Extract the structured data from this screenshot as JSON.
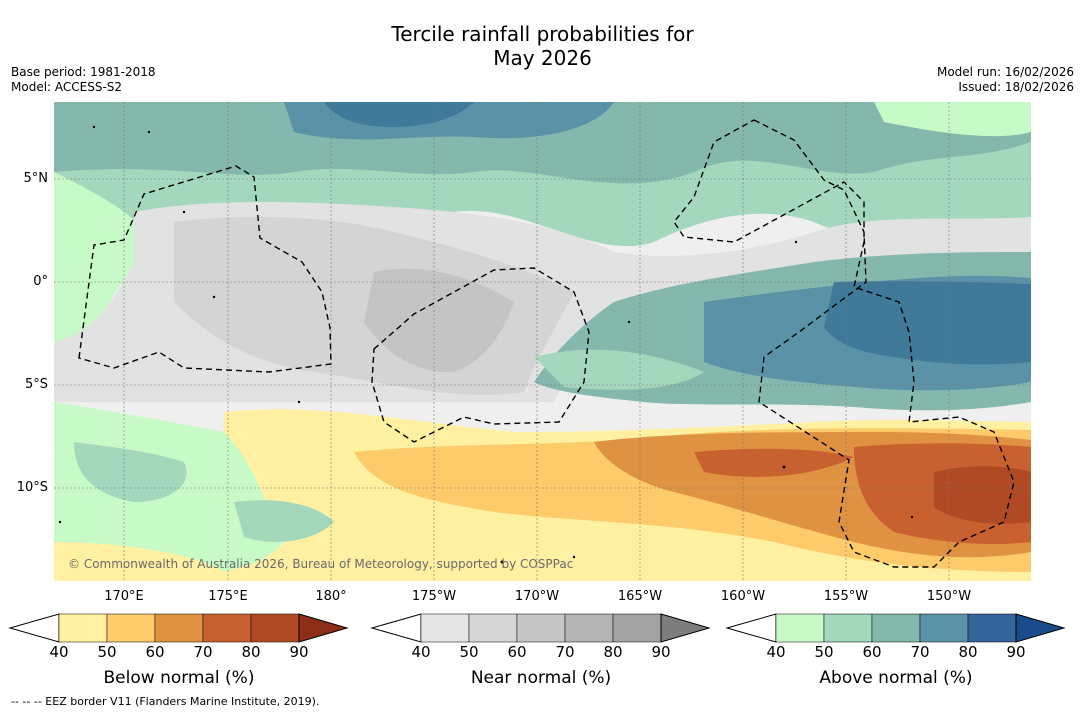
{
  "title": {
    "line1": "Tercile rainfall probabilities for",
    "line2": "May 2026"
  },
  "meta": {
    "base_period": "Base period: 1981-2018",
    "model": "Model: ACCESS-S2",
    "model_run": "Model run: 16/02/2026",
    "issued": "Issued: 18/02/2026"
  },
  "map": {
    "latitude_labels": [
      "5°N",
      "0°",
      "5°S",
      "10°S"
    ],
    "longitude_labels": [
      "170°E",
      "175°E",
      "180°",
      "175°W",
      "170°W",
      "165°W",
      "160°W",
      "155°W",
      "150°W"
    ],
    "copyright": "© Commonwealth of Australia 2026, Bureau of Meteorology, supported by COSPPac"
  },
  "colorbars": [
    {
      "label": "Below normal (%)",
      "ticks": [
        "40",
        "50",
        "60",
        "70",
        "80",
        "90"
      ],
      "colors": [
        "#ffffff",
        "#fff0a2",
        "#fdcb6a",
        "#e09243",
        "#c9602f",
        "#b04a24",
        "#8c2e17"
      ]
    },
    {
      "label": "Near normal (%)",
      "ticks": [
        "40",
        "50",
        "60",
        "70",
        "80",
        "90"
      ],
      "colors": [
        "#ffffff",
        "#e6e6e6",
        "#d6d6d6",
        "#c6c6c6",
        "#b4b4b4",
        "#a3a3a3",
        "#7d7d7d"
      ]
    },
    {
      "label": "Above normal (%)",
      "ticks": [
        "40",
        "50",
        "60",
        "70",
        "80",
        "90"
      ],
      "colors": [
        "#ffffff",
        "#c8fac8",
        "#a3d8bc",
        "#85b8ad",
        "#5a93a8",
        "#33649a",
        "#1a4b8a"
      ]
    }
  ],
  "footer": "--  --  -- EEZ border V11 (Flanders Marine Institute, 2019)."
}
